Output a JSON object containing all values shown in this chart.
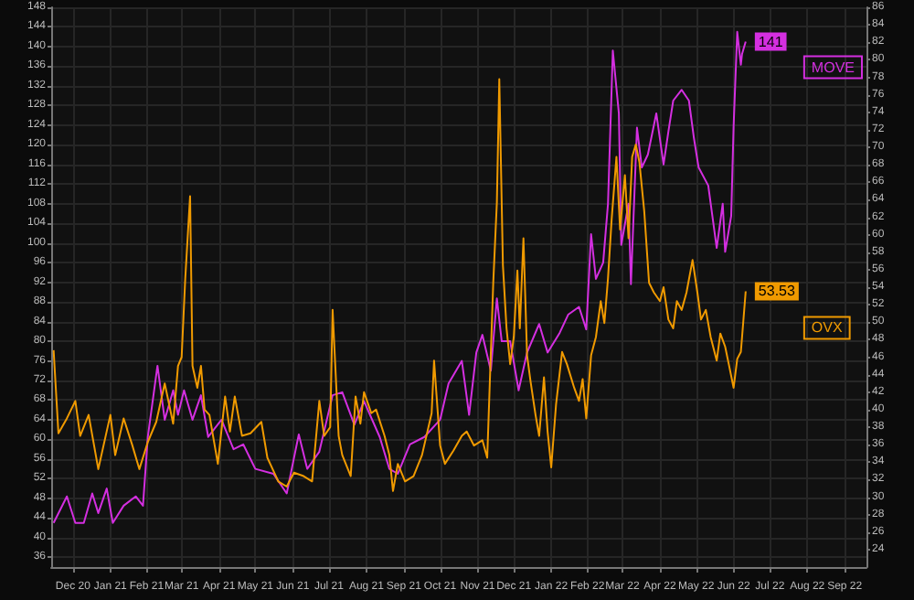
{
  "chart_data": {
    "type": "line",
    "xlim": [
      "2020-11-28",
      "2022-10-04"
    ],
    "xticks": [
      {
        "value": "2020-12-16",
        "label": "Dec 20"
      },
      {
        "value": "2021-01-16",
        "label": "Jan 21"
      },
      {
        "value": "2021-02-15",
        "label": "Feb 21"
      },
      {
        "value": "2021-03-16",
        "label": "Mar 21"
      },
      {
        "value": "2021-04-16",
        "label": "Apr 21"
      },
      {
        "value": "2021-05-16",
        "label": "May 21"
      },
      {
        "value": "2021-06-16",
        "label": "Jun 21"
      },
      {
        "value": "2021-07-16",
        "label": "Jul 21"
      },
      {
        "value": "2021-08-16",
        "label": "Aug 21"
      },
      {
        "value": "2021-09-16",
        "label": "Sep 21"
      },
      {
        "value": "2021-10-16",
        "label": "Oct 21"
      },
      {
        "value": "2021-11-16",
        "label": "Nov 21"
      },
      {
        "value": "2021-12-16",
        "label": "Dec 21"
      },
      {
        "value": "2022-01-16",
        "label": "Jan 22"
      },
      {
        "value": "2022-02-15",
        "label": "Feb 22"
      },
      {
        "value": "2022-03-16",
        "label": "Mar 22"
      },
      {
        "value": "2022-04-16",
        "label": "Apr 22"
      },
      {
        "value": "2022-05-16",
        "label": "May 22"
      },
      {
        "value": "2022-06-16",
        "label": "Jun 22"
      },
      {
        "value": "2022-07-16",
        "label": "Jul 22"
      },
      {
        "value": "2022-08-16",
        "label": "Aug 22"
      },
      {
        "value": "2022-09-16",
        "label": "Sep 22"
      }
    ],
    "ylim": [
      34,
      148
    ],
    "yticks": [
      36,
      40,
      44,
      48,
      52,
      56,
      60,
      64,
      68,
      72,
      76,
      80,
      84,
      88,
      92,
      96,
      100,
      104,
      108,
      112,
      116,
      120,
      124,
      128,
      132,
      136,
      140,
      144,
      148
    ],
    "y2lim": [
      22,
      86
    ],
    "y2ticks": [
      24,
      26,
      28,
      30,
      32,
      34,
      36,
      38,
      40,
      42,
      44,
      46,
      48,
      50,
      52,
      54,
      56,
      58,
      60,
      62,
      64,
      66,
      68,
      70,
      72,
      74,
      76,
      78,
      80,
      82,
      84,
      86
    ],
    "grid": true,
    "marker": "none",
    "legend": false,
    "series": [
      {
        "name": "MOVE",
        "color": "#d42fe0",
        "x": [
          "2020-11-30",
          "2020-12-11",
          "2020-12-18",
          "2020-12-25",
          "2021-01-01",
          "2021-01-06",
          "2021-01-13",
          "2021-01-18",
          "2021-01-27",
          "2021-02-06",
          "2021-02-12",
          "2021-02-16",
          "2021-02-24",
          "2021-03-02",
          "2021-03-09",
          "2021-03-13",
          "2021-03-18",
          "2021-03-25",
          "2021-04-01",
          "2021-04-07",
          "2021-04-18",
          "2021-04-28",
          "2021-05-06",
          "2021-05-16",
          "2021-05-31",
          "2021-06-11",
          "2021-06-21",
          "2021-06-28",
          "2021-07-08",
          "2021-07-19",
          "2021-07-27",
          "2021-08-06",
          "2021-08-14",
          "2021-08-27",
          "2021-09-04",
          "2021-09-11",
          "2021-09-21",
          "2021-10-03",
          "2021-10-16",
          "2021-10-23",
          "2021-11-03",
          "2021-11-09",
          "2021-11-15",
          "2021-11-20",
          "2021-11-27",
          "2021-12-02",
          "2021-12-06",
          "2021-12-13",
          "2021-12-20",
          "2021-12-27",
          "2022-01-06",
          "2022-01-13",
          "2022-01-23",
          "2022-01-30",
          "2022-02-08",
          "2022-02-14",
          "2022-02-18",
          "2022-02-22",
          "2022-02-28",
          "2022-03-04",
          "2022-03-08",
          "2022-03-13",
          "2022-03-15",
          "2022-03-21",
          "2022-03-23",
          "2022-03-28",
          "2022-04-01",
          "2022-04-06",
          "2022-04-13",
          "2022-04-19",
          "2022-04-23",
          "2022-04-27",
          "2022-05-04",
          "2022-05-10",
          "2022-05-14",
          "2022-05-18",
          "2022-05-26",
          "2022-06-02",
          "2022-06-07",
          "2022-06-09",
          "2022-06-14",
          "2022-06-16",
          "2022-06-19",
          "2022-06-22",
          "2022-06-23",
          "2022-06-26"
        ],
        "values": [
          43,
          48.4,
          43,
          43,
          49,
          45,
          50,
          43,
          46.5,
          48.4,
          46.5,
          60.5,
          75,
          64,
          70,
          65,
          70,
          64,
          69,
          60.5,
          64,
          58,
          59,
          54,
          53,
          49,
          61,
          54,
          57.5,
          69,
          69.6,
          63,
          67.8,
          60.5,
          54,
          53,
          59,
          60.5,
          64,
          71.4,
          76,
          65,
          77.7,
          81.3,
          74,
          88.7,
          80,
          80,
          70,
          77.7,
          83.5,
          77.7,
          81.7,
          85.4,
          87,
          82.4,
          101.8,
          92.7,
          96,
          108,
          139.2,
          126.4,
          99.6,
          108,
          91.6,
          123.5,
          115.4,
          118,
          126.4,
          116,
          122.7,
          129,
          131.2,
          129,
          121.6,
          115.4,
          111.7,
          99,
          108,
          98.2,
          105.5,
          123.8,
          143,
          136.3,
          138.5,
          141
        ],
        "value_labels": [
          null,
          null,
          null,
          null,
          null,
          null,
          null,
          null,
          null,
          null,
          null,
          null,
          null,
          null,
          null,
          null,
          null,
          null,
          null,
          null,
          null,
          null,
          null,
          null,
          null,
          null,
          null,
          null,
          null,
          null,
          null,
          null,
          null,
          null,
          null,
          null,
          null,
          null,
          null,
          null,
          null,
          null,
          null,
          null,
          null,
          null,
          null,
          null,
          null,
          null,
          null,
          null,
          null,
          null,
          null,
          null,
          null,
          null,
          null,
          null,
          null,
          null,
          null,
          null,
          null,
          null,
          null,
          null,
          null,
          null,
          null,
          null,
          null,
          null,
          null,
          null,
          null,
          null,
          null,
          null,
          null,
          null,
          null,
          null,
          null,
          "141"
        ]
      },
      {
        "name": "OVX",
        "color": "#f09a00",
        "axis": "y2",
        "x": [
          "2020-11-30",
          "2020-12-04",
          "2020-12-11",
          "2020-12-18",
          "2020-12-22",
          "2020-12-29",
          "2021-01-06",
          "2021-01-16",
          "2021-01-20",
          "2021-01-27",
          "2021-02-03",
          "2021-02-09",
          "2021-02-16",
          "2021-02-23",
          "2021-03-02",
          "2021-03-09",
          "2021-03-13",
          "2021-03-16",
          "2021-03-19",
          "2021-03-23",
          "2021-03-25",
          "2021-03-29",
          "2021-04-01",
          "2021-04-04",
          "2021-04-08",
          "2021-04-15",
          "2021-04-21",
          "2021-04-25",
          "2021-04-29",
          "2021-05-05",
          "2021-05-12",
          "2021-05-21",
          "2021-05-26",
          "2021-06-04",
          "2021-06-11",
          "2021-06-17",
          "2021-06-25",
          "2021-07-02",
          "2021-07-08",
          "2021-07-12",
          "2021-07-17",
          "2021-07-19",
          "2021-07-24",
          "2021-07-27",
          "2021-08-03",
          "2021-08-07",
          "2021-08-11",
          "2021-08-14",
          "2021-08-20",
          "2021-08-24",
          "2021-08-31",
          "2021-09-04",
          "2021-09-07",
          "2021-09-11",
          "2021-09-17",
          "2021-09-24",
          "2021-10-01",
          "2021-10-09",
          "2021-10-11",
          "2021-10-16",
          "2021-10-20",
          "2021-10-27",
          "2021-11-03",
          "2021-11-07",
          "2021-11-13",
          "2021-11-20",
          "2021-11-24",
          "2021-11-29",
          "2021-12-02",
          "2021-12-04",
          "2021-12-07",
          "2021-12-10",
          "2021-12-13",
          "2021-12-16",
          "2021-12-19",
          "2021-12-21",
          "2021-12-24",
          "2021-12-27",
          "2021-12-30",
          "2022-01-03",
          "2022-01-06",
          "2022-01-10",
          "2022-01-13",
          "2022-01-16",
          "2022-01-20",
          "2022-01-25",
          "2022-01-29",
          "2022-02-04",
          "2022-02-08",
          "2022-02-11",
          "2022-02-14",
          "2022-02-18",
          "2022-02-22",
          "2022-02-26",
          "2022-03-01",
          "2022-03-04",
          "2022-03-07",
          "2022-03-11",
          "2022-03-14",
          "2022-03-18",
          "2022-03-21",
          "2022-03-24",
          "2022-03-27",
          "2022-03-30",
          "2022-04-03",
          "2022-04-07",
          "2022-04-11",
          "2022-04-16",
          "2022-04-19",
          "2022-04-23",
          "2022-04-27",
          "2022-04-30",
          "2022-05-04",
          "2022-05-08",
          "2022-05-13",
          "2022-05-17",
          "2022-05-20",
          "2022-05-24",
          "2022-05-28",
          "2022-06-02",
          "2022-06-05",
          "2022-06-09",
          "2022-06-12",
          "2022-06-16",
          "2022-06-19",
          "2022-06-22",
          "2022-06-23",
          "2022-06-26"
        ],
        "values": [
          46.8,
          37.3,
          39,
          41,
          37,
          39.4,
          33.2,
          39.4,
          34.8,
          39,
          36,
          33.2,
          36.3,
          38.6,
          43,
          38.4,
          45,
          46,
          55,
          64.4,
          45,
          42.5,
          45,
          40,
          39.4,
          33.8,
          41.5,
          37.5,
          41.5,
          37,
          37.3,
          38.6,
          34.5,
          31.8,
          31.2,
          32.8,
          32.4,
          31.8,
          41,
          37,
          38,
          51.4,
          37,
          34.8,
          32.4,
          41.5,
          38.4,
          42,
          39.6,
          40,
          37,
          34.8,
          30.7,
          33.8,
          31.8,
          32.4,
          34.8,
          39.6,
          45.6,
          35.9,
          33.8,
          35.3,
          37,
          37.5,
          35.9,
          36.5,
          34.5,
          54.5,
          63.7,
          77.8,
          56.5,
          49.3,
          45.2,
          48.3,
          55.9,
          49.3,
          59.6,
          46.2,
          43.1,
          39.4,
          37,
          43.7,
          37.5,
          33.4,
          40.6,
          46.6,
          45.2,
          42.5,
          41,
          43.5,
          39,
          46.2,
          48.3,
          52.4,
          49.9,
          55,
          61.7,
          68.9,
          60.6,
          66.8,
          59.6,
          68.9,
          70.3,
          68.3,
          62.7,
          54.5,
          53.4,
          52.4,
          54,
          50.3,
          49.3,
          52.4,
          51.4,
          53.4,
          57.1,
          53.4,
          50.3,
          51.4,
          48.3,
          45.6,
          48.7,
          47.2,
          45.2,
          42.5,
          45.8,
          46.6,
          48.3,
          53.53
        ],
        "value_labels": [
          null,
          null,
          null,
          null,
          null,
          null,
          null,
          null,
          null,
          null,
          null,
          null,
          null,
          null,
          null,
          null,
          null,
          null,
          null,
          null,
          null,
          null,
          null,
          null,
          null,
          null,
          null,
          null,
          null,
          null,
          null,
          null,
          null,
          null,
          null,
          null,
          null,
          null,
          null,
          null,
          null,
          null,
          null,
          null,
          null,
          null,
          null,
          null,
          null,
          null,
          null,
          null,
          null,
          null,
          null,
          null,
          null,
          null,
          null,
          null,
          null,
          null,
          null,
          null,
          null,
          null,
          null,
          null,
          null,
          null,
          null,
          null,
          null,
          null,
          null,
          null,
          null,
          null,
          null,
          null,
          null,
          null,
          null,
          null,
          null,
          null,
          null,
          null,
          null,
          null,
          null,
          null,
          null,
          null,
          null,
          null,
          null,
          null,
          null,
          null,
          null,
          null,
          null,
          null,
          null,
          null,
          null,
          null,
          null,
          null,
          null,
          null,
          null,
          null,
          null,
          null,
          null,
          null,
          null,
          null,
          null,
          null,
          null,
          null,
          null,
          null,
          null,
          "53.53"
        ]
      }
    ]
  }
}
